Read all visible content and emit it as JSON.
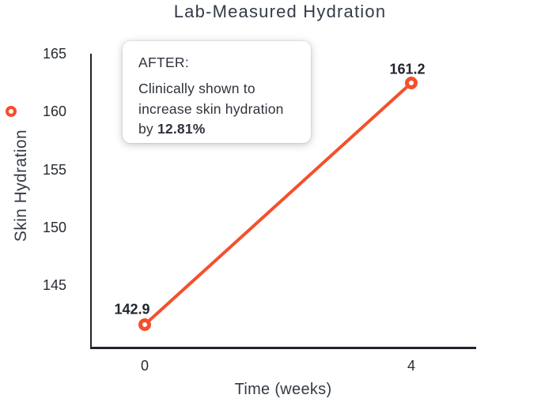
{
  "title": "Lab-Measured Hydration",
  "chart_data": {
    "type": "line",
    "title": "Lab-Measured Hydration",
    "xlabel": "Time (weeks)",
    "ylabel": "Skin Hydration",
    "x": [
      0,
      4
    ],
    "x_tick_labels": [
      "0",
      "4"
    ],
    "y_tick_values": [
      165,
      160,
      155,
      150,
      145
    ],
    "ylim": [
      139.7,
      165.3
    ],
    "grid": false,
    "legend_position": "left-vertical-on-y-axis",
    "series": [
      {
        "name": "Skin Hydration",
        "values": [
          142.9,
          161.2
        ],
        "data_labels": [
          "142.9",
          "161.2"
        ],
        "color": "#F4502C",
        "marker": "open-circle"
      }
    ]
  },
  "annotation": {
    "heading": "AFTER:",
    "line1": "Clinically shown to",
    "line2": "increase skin hydration",
    "line3_prefix": "by ",
    "line3_bold": "12.81%"
  },
  "colors": {
    "accent": "#F4502C",
    "axis": "#20252D",
    "tick_text": "#262B33",
    "title_text": "#343B46",
    "label_text": "#21262E",
    "annotation_text": "#2E333B",
    "annotation_bg": "#FFFFFF"
  }
}
